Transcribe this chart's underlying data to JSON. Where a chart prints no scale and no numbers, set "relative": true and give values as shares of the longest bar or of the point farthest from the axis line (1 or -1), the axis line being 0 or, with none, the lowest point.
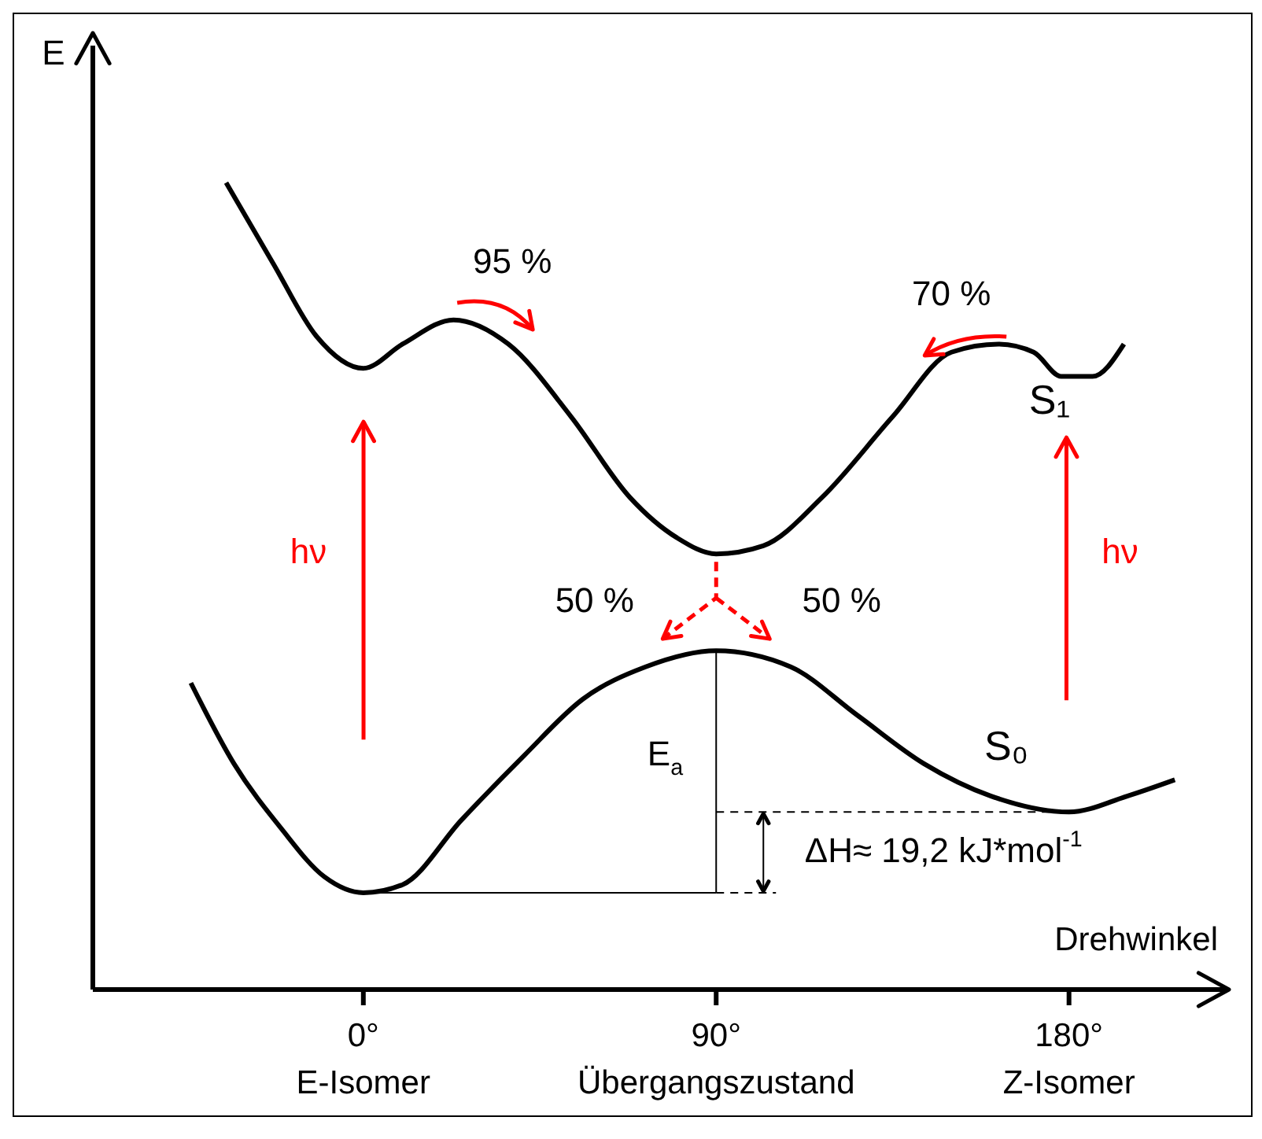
{
  "chart_data": {
    "type": "line",
    "relative": true,
    "xlabel": "Drehwinkel",
    "ylabel": "E",
    "xlim": [
      -69,
      220
    ],
    "xticks": [
      {
        "value": 0,
        "label": "0°\nE-Isomer"
      },
      {
        "value": 90,
        "label": "90°\nÜbergangszustand"
      },
      {
        "value": 180,
        "label": "180°\nZ-Isomer"
      }
    ],
    "series": [
      {
        "name": "S₁",
        "color": "#000000",
        "x": [
          -35,
          -23,
          -12,
          0,
          10,
          23,
          37,
          53,
          68,
          80,
          90,
          102,
          117,
          135,
          150,
          162,
          171,
          178,
          186,
          194
        ],
        "values": [
          1,
          0.9,
          0.81,
          0.77,
          0.8,
          0.83,
          0.8,
          0.71,
          0.61,
          0.56,
          0.54,
          0.55,
          0.61,
          0.71,
          0.79,
          0.8,
          0.79,
          0.76,
          0.76,
          0.8
        ]
      },
      {
        "name": "S₀",
        "color": "#000000",
        "x": [
          -44,
          -33,
          -21,
          -10,
          0,
          10,
          25,
          41,
          56,
          72,
          90,
          109,
          126,
          143,
          160,
          180,
          195,
          207
        ],
        "values": [
          0.38,
          0.28,
          0.2,
          0.14,
          0.12,
          0.13,
          0.21,
          0.29,
          0.36,
          0.4,
          0.42,
          0.4,
          0.34,
          0.28,
          0.24,
          0.22,
          0.24,
          0.26
        ]
      }
    ],
    "annotations": [
      "95 %",
      "70 %",
      "50 %",
      "50 %",
      "hν",
      "hν",
      "E$_{a}$",
      "ΔH≈ 19,2 kJ*mol$^{-1}$"
    ]
  }
}
